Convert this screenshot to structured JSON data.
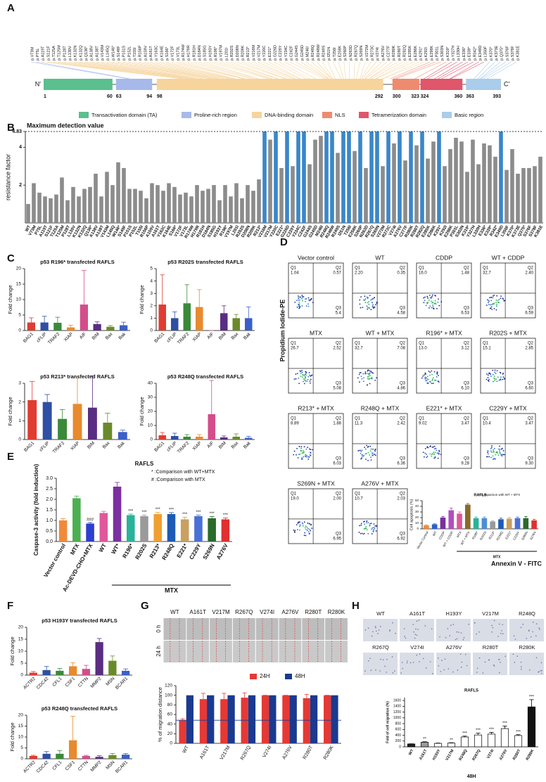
{
  "panel_labels": [
    "A",
    "B",
    "C",
    "D",
    "E",
    "F",
    "G",
    "H"
  ],
  "a": {
    "n_term": "N'",
    "c_term": "C'",
    "positions": [
      1,
      60,
      63,
      94,
      98,
      292,
      300,
      323,
      324,
      360,
      363,
      393
    ],
    "domains": [
      {
        "name": "Transactivation domain (TA)",
        "color": "#5bbf8e"
      },
      {
        "name": "Proline-rich region",
        "color": "#a7b9ea"
      },
      {
        "name": "DNA-binding domain",
        "color": "#f6d49c"
      },
      {
        "name": "NLS",
        "color": "#ee8b6f"
      },
      {
        "name": "Tetramerization domain",
        "color": "#e0566a"
      },
      {
        "name": "Basic region",
        "color": "#a9cdea"
      }
    ],
    "mutations": [
      "p.V73M",
      "p.P75L",
      "p.A119T",
      "p.S121F",
      "p.T125A",
      "p.T125M",
      "p.P128T",
      "p.L130V",
      "p.K132N",
      "p.K132Q",
      "p.Q136*",
      "p.A138V",
      "p.A138T",
      "p.V143M",
      "p.L145Q",
      "p.W146*",
      "p.S149F",
      "p.P151S",
      "p.P152L",
      "p.T155I",
      "p.R156P",
      "p.A159V",
      "p.A161T",
      "p.Y163C",
      "p.K164E",
      "p.S166*",
      "p.V172F",
      "p.V173L",
      "p.R174W",
      "p.H179R",
      "p.R181H",
      "p.D184N",
      "p.S185G",
      "p.H193Y",
      "p.R196*",
      "p.V197M",
      "p.L201I",
      "p.R202S",
      "p.D208N",
      "p.R209K",
      "p.R213*",
      "p.V216M",
      "p.V217M",
      "p.Y220C",
      "p.E221*",
      "p.G226D",
      "p.C229Y",
      "p.Y234C",
      "p.C242F",
      "p.G244S",
      "p.G245D",
      "p.M246I",
      "p.R248Q",
      "p.R248W",
      "p.R249S",
      "p.I251N",
      "p.T256I",
      "p.E258K",
      "p.S260P",
      "p.N263D",
      "p.R267Q",
      "p.S269N",
      "p.V272M",
      "p.R273C",
      "p.V274I",
      "p.A276V",
      "p.C277F",
      "p.R280K",
      "p.R280T",
      "p.R282Q",
      "p.E285K",
      "p.E286K",
      "p.K291*",
      "p.K292I",
      "p.E298K",
      "p.P301L",
      "p.S303N",
      "p.K319*",
      "p.Y327H",
      "p.L330H",
      "p.E336*",
      "p.E339*",
      "p.R342*",
      "p.E349D",
      "p.L350F",
      "p.K370*",
      "p.K373E",
      "p.Q375*",
      "p.S376F",
      "p.S378F",
      "p.K381E"
    ]
  },
  "b": {
    "type": "bar",
    "title": "Maximum detection value",
    "ylabel": "resistance factor",
    "categories": [
      "WT",
      "V73M",
      "P75L",
      "A119T",
      "S121F",
      "T125A",
      "T125M",
      "P128T",
      "L130V",
      "K132N",
      "K132Q",
      "Q136*",
      "A138V",
      "A138T",
      "V143M",
      "L145Q",
      "W146*",
      "S149F",
      "P151S",
      "P152L",
      "T155I",
      "R156P",
      "A159V",
      "A161T",
      "Y163C",
      "K164E",
      "S166*",
      "V172F",
      "V173L",
      "R174W",
      "H179R",
      "R181H",
      "D184N",
      "S185G",
      "H193Y",
      "R196*",
      "V197M",
      "L201I",
      "R202S",
      "D208N",
      "R209K",
      "R213*",
      "V216M",
      "V217M",
      "Y220C",
      "E221*",
      "G226D",
      "C229Y",
      "Y234C",
      "C242F",
      "G244S",
      "G245D",
      "M246I",
      "R248Q",
      "R248W",
      "R249S",
      "I251N",
      "T256I",
      "E258K",
      "S260P",
      "N263D",
      "R267Q",
      "S269N",
      "V272M",
      "R273C",
      "V274I",
      "A276V",
      "C277F",
      "R280K",
      "R280T",
      "R282Q",
      "E285K",
      "E286K",
      "K291*",
      "K292I",
      "E298K",
      "P301L",
      "S303N",
      "K319*",
      "Y327H",
      "L330H",
      "E336*",
      "E339*",
      "R342*",
      "E349D",
      "L350F",
      "K370*",
      "K373E",
      "Q375*",
      "S376F",
      "S378F",
      "K381E"
    ],
    "values": [
      1.0,
      2.1,
      1.6,
      1.4,
      1.3,
      1.5,
      2.4,
      1.2,
      1.9,
      1.4,
      1.8,
      1.9,
      2.6,
      1.4,
      2.7,
      2.0,
      3.2,
      2.9,
      1.8,
      1.8,
      1.7,
      1.3,
      2.1,
      2.0,
      1.7,
      2.1,
      1.9,
      1.5,
      1.6,
      1.4,
      2.0,
      1.7,
      1.8,
      2.0,
      1.2,
      2.0,
      1.4,
      2.1,
      1.3,
      2.0,
      1.7,
      2.3,
      4.83,
      4.4,
      4.83,
      2.9,
      4.83,
      3.0,
      4.83,
      4.83,
      3.1,
      4.4,
      4.6,
      4.83,
      4.83,
      3.7,
      4.83,
      4.83,
      3.8,
      4.83,
      2.9,
      4.83,
      4.83,
      3.0,
      4.83,
      4.2,
      4.83,
      3.3,
      4.83,
      4.1,
      4.83,
      3.4,
      4.3,
      4.83,
      3.0,
      3.9,
      4.5,
      4.3,
      2.7,
      4.4,
      3.1,
      4.2,
      4.1,
      3.5,
      4.83,
      2.8,
      3.9,
      2.6,
      2.9,
      2.9,
      3.0,
      3.5
    ],
    "color": "#8c8c8c",
    "highlight_color": "#3a87c9",
    "max_value": 4.83,
    "ylim": [
      0,
      4.83
    ],
    "yticks": [
      2,
      4,
      4.83
    ]
  },
  "c": [
    {
      "type": "bar",
      "title": "p53 R196* transfected RAFLS",
      "ylabel": "Fold change",
      "categories": [
        "BAG1",
        "cFLIP",
        "TRAF2",
        "XIAP",
        "AIF",
        "BIM",
        "Bax",
        "Bak"
      ],
      "values": [
        2.6,
        2.6,
        2.5,
        1.0,
        8.4,
        2.1,
        1.2,
        1.7
      ],
      "errors": [
        1.5,
        2.0,
        1.8,
        0.7,
        11,
        0.7,
        0.4,
        1.0
      ],
      "colors": [
        "#e03c31",
        "#2e4fa3",
        "#3a8a3a",
        "#e88a2e",
        "#d44d8a",
        "#5a2d82",
        "#6a8a2a",
        "#3b5fc9"
      ],
      "ylim": [
        0,
        20
      ],
      "yticks": [
        0,
        5,
        10,
        15,
        20
      ]
    },
    {
      "type": "bar",
      "title": "p53 R202S transfected RAFLS",
      "ylabel": "Fold change",
      "categories": [
        "BAG1",
        "cFLIP",
        "TRAF2",
        "XIAP",
        "AIF",
        "BIM",
        "Bax",
        "Bak"
      ],
      "values": [
        2.1,
        1.0,
        2.2,
        1.9,
        0,
        1.4,
        1.0,
        1.0
      ],
      "errors": [
        2.4,
        0.5,
        1.5,
        1.4,
        0,
        0.6,
        0.3,
        0.9
      ],
      "colors": [
        "#e03c31",
        "#2e4fa3",
        "#3a8a3a",
        "#e88a2e",
        "#d44d8a",
        "#5a2d82",
        "#6a8a2a",
        "#3b5fc9"
      ],
      "ylim": [
        0,
        5
      ],
      "yticks": [
        0,
        1,
        2,
        3,
        4,
        5
      ]
    },
    {
      "type": "bar",
      "title": "p53 R213* transfected RAFLS",
      "ylabel": "Fold change",
      "categories": [
        "BAG1",
        "cFLIP",
        "TRAF2",
        "XIAP",
        "BIM",
        "Bax",
        "Bak"
      ],
      "values": [
        2.1,
        2.0,
        1.1,
        1.9,
        1.7,
        0.9,
        0.4
      ],
      "errors": [
        1.0,
        0.4,
        0.5,
        1.4,
        1.7,
        0.5,
        0.1
      ],
      "colors": [
        "#e03c31",
        "#2e4fa3",
        "#3a8a3a",
        "#e88a2e",
        "#5a2d82",
        "#6a8a2a",
        "#3b5fc9"
      ],
      "ylim": [
        0,
        3
      ],
      "yticks": [
        0,
        1,
        2,
        3
      ]
    },
    {
      "type": "bar",
      "title": "p53 R248Q transfected RAFLS",
      "ylabel": "Fold change",
      "categories": [
        "BAG1",
        "cFLIP",
        "TRAF2",
        "XIAP",
        "AIF",
        "BIM",
        "Bax",
        "Bak"
      ],
      "values": [
        3,
        2.5,
        2,
        2,
        18,
        1.5,
        2,
        1.2
      ],
      "errors": [
        2,
        2,
        1.5,
        1.5,
        24,
        1,
        2,
        1
      ],
      "colors": [
        "#e03c31",
        "#2e4fa3",
        "#3a8a3a",
        "#e88a2e",
        "#d44d8a",
        "#5a2d82",
        "#6a8a2a",
        "#3b5fc9"
      ],
      "ylim": [
        0,
        40
      ],
      "yticks": [
        0,
        10,
        20,
        30,
        40
      ]
    }
  ],
  "d": {
    "y_label": "Propidium Iodide-PE",
    "x_label": "Annexin V - FITC",
    "quadrant_labels": [
      "Q1",
      "Q2",
      "Q3"
    ],
    "plots": [
      {
        "title": "Vector control",
        "q1": "1.04",
        "q2": "0.57",
        "q3": "5.4"
      },
      {
        "title": "WT",
        "q1": "2.20",
        "q2": "0.35",
        "q3": "4.58"
      },
      {
        "title": "CDDP",
        "q1": "16.0",
        "q2": "1.48",
        "q3": "6.53"
      },
      {
        "title": "WT + CDDP",
        "q1": "32.7",
        "q2": "2.40",
        "q3": "6.59"
      },
      {
        "title": "MTX",
        "q1": "26.7",
        "q2": "2.52",
        "q3": "5.08"
      },
      {
        "title": "WT + MTX",
        "q1": "32.7",
        "q2": "7.08",
        "q3": "4.86"
      },
      {
        "title": "R196* + MTX",
        "q1": "13.0",
        "q2": "3.12",
        "q3": "6.10"
      },
      {
        "title": "R202S + MTX",
        "q1": "15.1",
        "q2": "2.85",
        "q3": "6.60"
      },
      {
        "title": "R213* + MTX",
        "q1": "8.89",
        "q2": "1.88",
        "q3": "6.03"
      },
      {
        "title": "R248Q + MTX",
        "q1": "11.3",
        "q2": "2.42",
        "q3": "6.36"
      },
      {
        "title": "E221* + MTX",
        "q1": "9.02",
        "q2": "3.47",
        "q3": "9.28"
      },
      {
        "title": "C229Y + MTX",
        "q1": "10.4",
        "q2": "3.47",
        "q3": "9.30"
      },
      {
        "title": "S269N + MTX",
        "q1": "19.0",
        "q2": "2.00",
        "q3": "6.95"
      },
      {
        "title": "A276V + MTX",
        "q1": "10.7",
        "q2": "2.03",
        "q3": "6.92"
      }
    ],
    "summary": {
      "type": "bar",
      "title": "RAFLS",
      "note": "* Comparison with WT + MTX",
      "ylabel": "Cell apoptosis (%)",
      "group_label": "MTX",
      "categories": [
        "Vector Control",
        "WT",
        "CDDP",
        "WT + CDDP",
        "MTX",
        "WT + MTX",
        "R196*",
        "R202S",
        "R213*",
        "R248Q",
        "E221*",
        "C229Y",
        "S269N",
        "A276V"
      ],
      "values": [
        6,
        8,
        20,
        33,
        27,
        43,
        19,
        19,
        13,
        17,
        18,
        19,
        19,
        15
      ],
      "errors": [
        1,
        1,
        2,
        4,
        3,
        2,
        2,
        2,
        1,
        2,
        2,
        2,
        3,
        2
      ],
      "colors": [
        "#f08a3a",
        "#2a5fd0",
        "#7b2fa0",
        "#b04fc0",
        "#e0579a",
        "#8a6a2a",
        "#29b39a",
        "#4a8fd6",
        "#9a9a9a",
        "#1e5bb5",
        "#c8a060",
        "#4a6fd6",
        "#2a6a2a",
        "#e03030"
      ],
      "ylim": [
        0,
        50
      ],
      "yticks": [
        0,
        10,
        20,
        30,
        40,
        50
      ]
    }
  },
  "e": {
    "type": "bar",
    "title": "RAFLS",
    "notes": [
      "* :Comparison with WT+MTX",
      "# :Comparison with MTX"
    ],
    "ylabel": "Caspase-3 activity (fold induction)",
    "group_label": "MTX",
    "categories": [
      "Vector control",
      "MTX",
      "Ac-DEVD-CHO+MTX",
      "WT",
      "WT*",
      "R196*",
      "R202S",
      "R213*",
      "R248Q",
      "E221*",
      "C229Y",
      "S269N",
      "A276V"
    ],
    "values": [
      1.0,
      2.05,
      0.85,
      1.35,
      2.6,
      1.25,
      1.2,
      1.3,
      1.3,
      1.05,
      1.2,
      1.1,
      1.05
    ],
    "errors": [
      0.08,
      0.1,
      0.05,
      0.08,
      0.2,
      0.05,
      0.05,
      0.08,
      0.07,
      0.1,
      0.05,
      0.08,
      0.07
    ],
    "annotations": [
      null,
      null,
      "###",
      null,
      null,
      "***",
      "***",
      "***",
      "***",
      "***",
      "***",
      "***",
      "***"
    ],
    "colors": [
      "#f08a3a",
      "#4caf50",
      "#2a3fd0",
      "#e0579a",
      "#7b2fa0",
      "#29b39a",
      "#9a9a9a",
      "#f0a030",
      "#1e5bb5",
      "#c8a060",
      "#4a6fd6",
      "#2a6a2a",
      "#e03030"
    ],
    "ylim": [
      0,
      3
    ],
    "yticks": [
      {
        "value": 0,
        "label": "0.0"
      },
      0.5,
      {
        "value": 1,
        "label": "1.0"
      },
      1.5,
      {
        "value": 2,
        "label": "2.0"
      },
      2.5,
      {
        "value": 3,
        "label": "3.0"
      }
    ]
  },
  "f": [
    {
      "type": "bar",
      "title": "p53 H193Y transfected RAFLS",
      "ylabel": "Fold change",
      "categories": [
        "ACTR2",
        "CDC42",
        "CFL1",
        "CSF1",
        "CTTN",
        "MMP2",
        "MSN",
        "BCAR1"
      ],
      "values": [
        1,
        2.1,
        1.8,
        3.7,
        2.6,
        13.8,
        6,
        1.8
      ],
      "errors": [
        0.5,
        1.5,
        1,
        1.5,
        1.5,
        1.5,
        2,
        0.8
      ],
      "colors": [
        "#e03c31",
        "#2e4fa3",
        "#3a8a3a",
        "#e88a2e",
        "#d44d8a",
        "#5a2d82",
        "#6a8a2a",
        "#3b5fc9"
      ],
      "ylim": [
        0,
        20
      ],
      "yticks": [
        0,
        5,
        10,
        15,
        20
      ]
    },
    {
      "type": "bar",
      "title": "p53 R248Q transfected RAFLS",
      "ylabel": "Fold change",
      "categories": [
        "ACTR2",
        "CDC42",
        "CFL1",
        "CSF1",
        "CTTN",
        "MMP2",
        "MSN",
        "BCAR1"
      ],
      "values": [
        1.3,
        2.3,
        2.3,
        8.5,
        1.3,
        0.9,
        1.7,
        1.9
      ],
      "errors": [
        0.3,
        1,
        1.5,
        11,
        0.3,
        0.5,
        0.7,
        0.5
      ],
      "colors": [
        "#e03c31",
        "#2e4fa3",
        "#3a8a3a",
        "#e88a2e",
        "#d44d8a",
        "#5a2d82",
        "#6a8a2a",
        "#3b5fc9"
      ],
      "ylim": [
        0,
        20
      ],
      "yticks": [
        0,
        5,
        10,
        15,
        20
      ]
    }
  ],
  "g": {
    "images": {
      "columns": [
        "WT",
        "A161T",
        "V217M",
        "R267Q",
        "V274I",
        "A276V",
        "R280T",
        "R280K"
      ],
      "rows": [
        "0 h",
        "24 h"
      ]
    },
    "chart": {
      "type": "bar",
      "ylabel": "% of migration distance",
      "categories": [
        "WT",
        "A161T",
        "V217M",
        "R267Q",
        "V274I",
        "A276V",
        "R280T",
        "R280K"
      ],
      "series": [
        {
          "name": "24H",
          "color": "#e53935",
          "values": [
            48,
            92,
            92,
            95,
            100,
            100,
            94,
            100
          ],
          "errors": [
            3,
            12,
            12,
            10,
            0,
            0,
            8,
            0
          ]
        },
        {
          "name": "48H",
          "color": "#1a3a8f",
          "values": [
            100,
            100,
            100,
            100,
            100,
            100,
            100,
            100
          ]
        }
      ],
      "ylim": [
        0,
        120
      ],
      "yticks": [
        0,
        20,
        40,
        60,
        80,
        100,
        120
      ]
    }
  },
  "h": {
    "images": [
      "WT",
      "A161T",
      "H193Y",
      "V217M",
      "R248Q",
      "R267Q",
      "V274I",
      "A276V",
      "R280T",
      "R280K"
    ],
    "chart": {
      "type": "bar",
      "title": "RAFLS",
      "ylabel": "Fold of cell migration (%)",
      "xlabel": "48H",
      "categories": [
        "WT",
        "A161T",
        "H193Y",
        "V217M",
        "R248Q",
        "R267Q",
        "V274I",
        "A276V",
        "R280T",
        "R280K"
      ],
      "values": [
        100,
        160,
        120,
        130,
        340,
        410,
        440,
        630,
        390,
        1380
      ],
      "errors": [
        5,
        15,
        10,
        10,
        30,
        60,
        60,
        90,
        30,
        250
      ],
      "annotations": [
        null,
        "**",
        null,
        "**",
        "***",
        "***",
        "***",
        "***",
        "***",
        "***"
      ],
      "colors": [
        "#222222",
        "#9a9a9a",
        "#ffffff",
        "#ffffff",
        "#ffffff",
        "#ffffff",
        "#ffffff",
        "#ffffff",
        "#ffffff",
        "#111111"
      ],
      "stroke": "#000000",
      "ylim": [
        0,
        1700
      ],
      "yticks": [
        0,
        200,
        400,
        600,
        800,
        1000,
        1200,
        1400,
        1600
      ]
    }
  }
}
